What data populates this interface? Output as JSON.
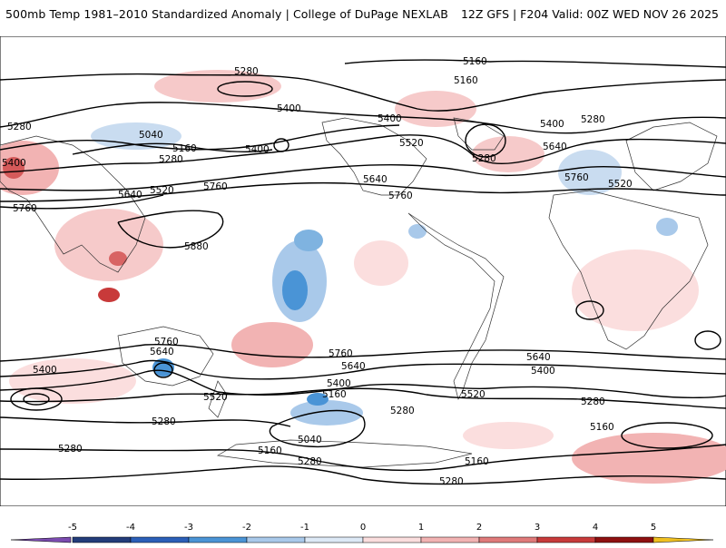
{
  "header": {
    "title": "500mb Temp 1981–2010 Standardized Anomaly | College of DuPage NEXLAB",
    "run_info": "12Z GFS | F204 Valid: 00Z WED NOV 26 2025"
  },
  "contours": {
    "labels": [
      {
        "text": "5280"
      },
      {
        "text": "5160"
      },
      {
        "text": "5160"
      },
      {
        "text": "5400"
      },
      {
        "text": "5400"
      },
      {
        "text": "5400"
      },
      {
        "text": "5280"
      },
      {
        "text": "5040"
      },
      {
        "text": "5160"
      },
      {
        "text": "5280"
      },
      {
        "text": "5400"
      },
      {
        "text": "5520"
      },
      {
        "text": "5280"
      },
      {
        "text": "5640"
      },
      {
        "text": "5520"
      },
      {
        "text": "5760"
      },
      {
        "text": "5640"
      },
      {
        "text": "5760"
      },
      {
        "text": "5520"
      },
      {
        "text": "5760"
      },
      {
        "text": "5640"
      },
      {
        "text": "5760"
      },
      {
        "text": "5880"
      },
      {
        "text": "5760"
      },
      {
        "text": "5640"
      },
      {
        "text": "5760"
      },
      {
        "text": "5640"
      },
      {
        "text": "5640"
      },
      {
        "text": "5400"
      },
      {
        "text": "5400"
      },
      {
        "text": "5400"
      },
      {
        "text": "5280"
      },
      {
        "text": "5160"
      },
      {
        "text": "5520"
      },
      {
        "text": "5520"
      },
      {
        "text": "5280"
      },
      {
        "text": "5280"
      },
      {
        "text": "5040"
      },
      {
        "text": "5160"
      },
      {
        "text": "5280"
      },
      {
        "text": "5280"
      },
      {
        "text": "5160"
      },
      {
        "text": "5280"
      },
      {
        "text": "5160"
      },
      {
        "text": "5280"
      },
      {
        "text": "5400"
      }
    ]
  },
  "colorbar": {
    "ticks": [
      "-5",
      "-4",
      "-3",
      "-2",
      "-1",
      "0",
      "1",
      "2",
      "3",
      "4",
      "5"
    ],
    "colors": [
      "#6a3d9a",
      "#233c7a",
      "#2b5fb8",
      "#4a94d6",
      "#a9c9ea",
      "#dde9f6",
      "#fbdede",
      "#f2b3b3",
      "#e07a7a",
      "#c83a3a",
      "#8e1010"
    ],
    "under_color": "#7b4bb0",
    "over_color": "#f0c020"
  }
}
